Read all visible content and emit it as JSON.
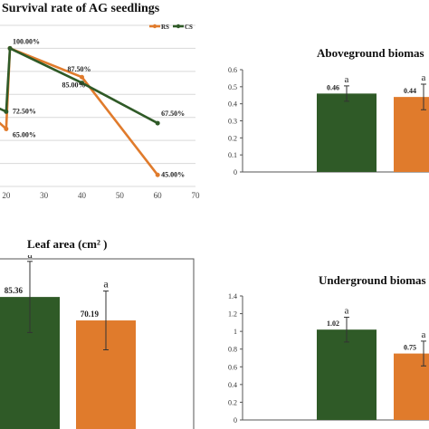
{
  "colors": {
    "rs": "#e07b2c",
    "cs": "#2f5a27",
    "axis": "#555555",
    "grid": "#d9d9d9",
    "errorbar": "#333333"
  },
  "chart_data": [
    {
      "type": "line",
      "title": "Survival rate of  AG seedlings",
      "xlim": [
        10,
        70
      ],
      "ylim": [
        40,
        110
      ],
      "grid": true,
      "xticks": [
        "20",
        "30",
        "40",
        "50",
        "60",
        "70"
      ],
      "legend": {
        "position": "top-right"
      },
      "series": [
        {
          "name": "RS",
          "color_key": "rs",
          "x": [
            10,
            20,
            21,
            40,
            60
          ],
          "y": [
            80,
            65,
            100,
            87.5,
            45
          ],
          "point_labels": [
            {
              "x": 20,
              "y": 65,
              "text": "65.00%"
            },
            {
              "x": 40,
              "y": 87.5,
              "text": "87.50%"
            },
            {
              "x": 60,
              "y": 45,
              "text": "45.00%"
            }
          ]
        },
        {
          "name": "CS",
          "color_key": "cs",
          "x": [
            10,
            20,
            21,
            40,
            60
          ],
          "y": [
            80,
            72.5,
            100,
            85,
            67.5
          ],
          "point_labels": [
            {
              "x": 20,
              "y": 72.5,
              "text": "72.50%"
            },
            {
              "x": 21,
              "y": 100,
              "text": "100.00%"
            },
            {
              "x": 40,
              "y": 85,
              "text": "85.00%"
            },
            {
              "x": 60,
              "y": 67.5,
              "text": "67.50%"
            }
          ]
        }
      ]
    },
    {
      "type": "bar",
      "title": "Aboveground biomas",
      "ylim": [
        0,
        0.6
      ],
      "yticks": [
        "0",
        "0.1",
        "0.2",
        "0.3",
        "0.4",
        "0.5",
        "0.6"
      ],
      "bars": [
        {
          "value": 0.46,
          "error": 0.045,
          "label": "0.46",
          "sig": "a",
          "color_key": "cs"
        },
        {
          "value": 0.44,
          "error": 0.075,
          "label": "0.44",
          "sig": "a",
          "color_key": "rs"
        }
      ]
    },
    {
      "type": "bar",
      "title": "Leaf area (cm² )",
      "ylim": [
        0,
        110
      ],
      "bars": [
        {
          "value": 85.36,
          "error": 23,
          "label": "85.36",
          "sig": "a",
          "color_key": "cs"
        },
        {
          "value": 70.19,
          "error": 19,
          "label": "70.19",
          "sig": "a",
          "color_key": "rs"
        }
      ]
    },
    {
      "type": "bar",
      "title": "Underground biomas",
      "ylim": [
        0,
        1.4
      ],
      "yticks": [
        "0",
        "0.2",
        "0.4",
        "0.6",
        "0.8",
        "1",
        "1.2",
        "1.4"
      ],
      "bars": [
        {
          "value": 1.02,
          "error": 0.14,
          "label": "1.02",
          "sig": "a",
          "color_key": "cs"
        },
        {
          "value": 0.75,
          "error": 0.14,
          "label": "0.75",
          "sig": "a",
          "color_key": "rs"
        }
      ]
    }
  ]
}
